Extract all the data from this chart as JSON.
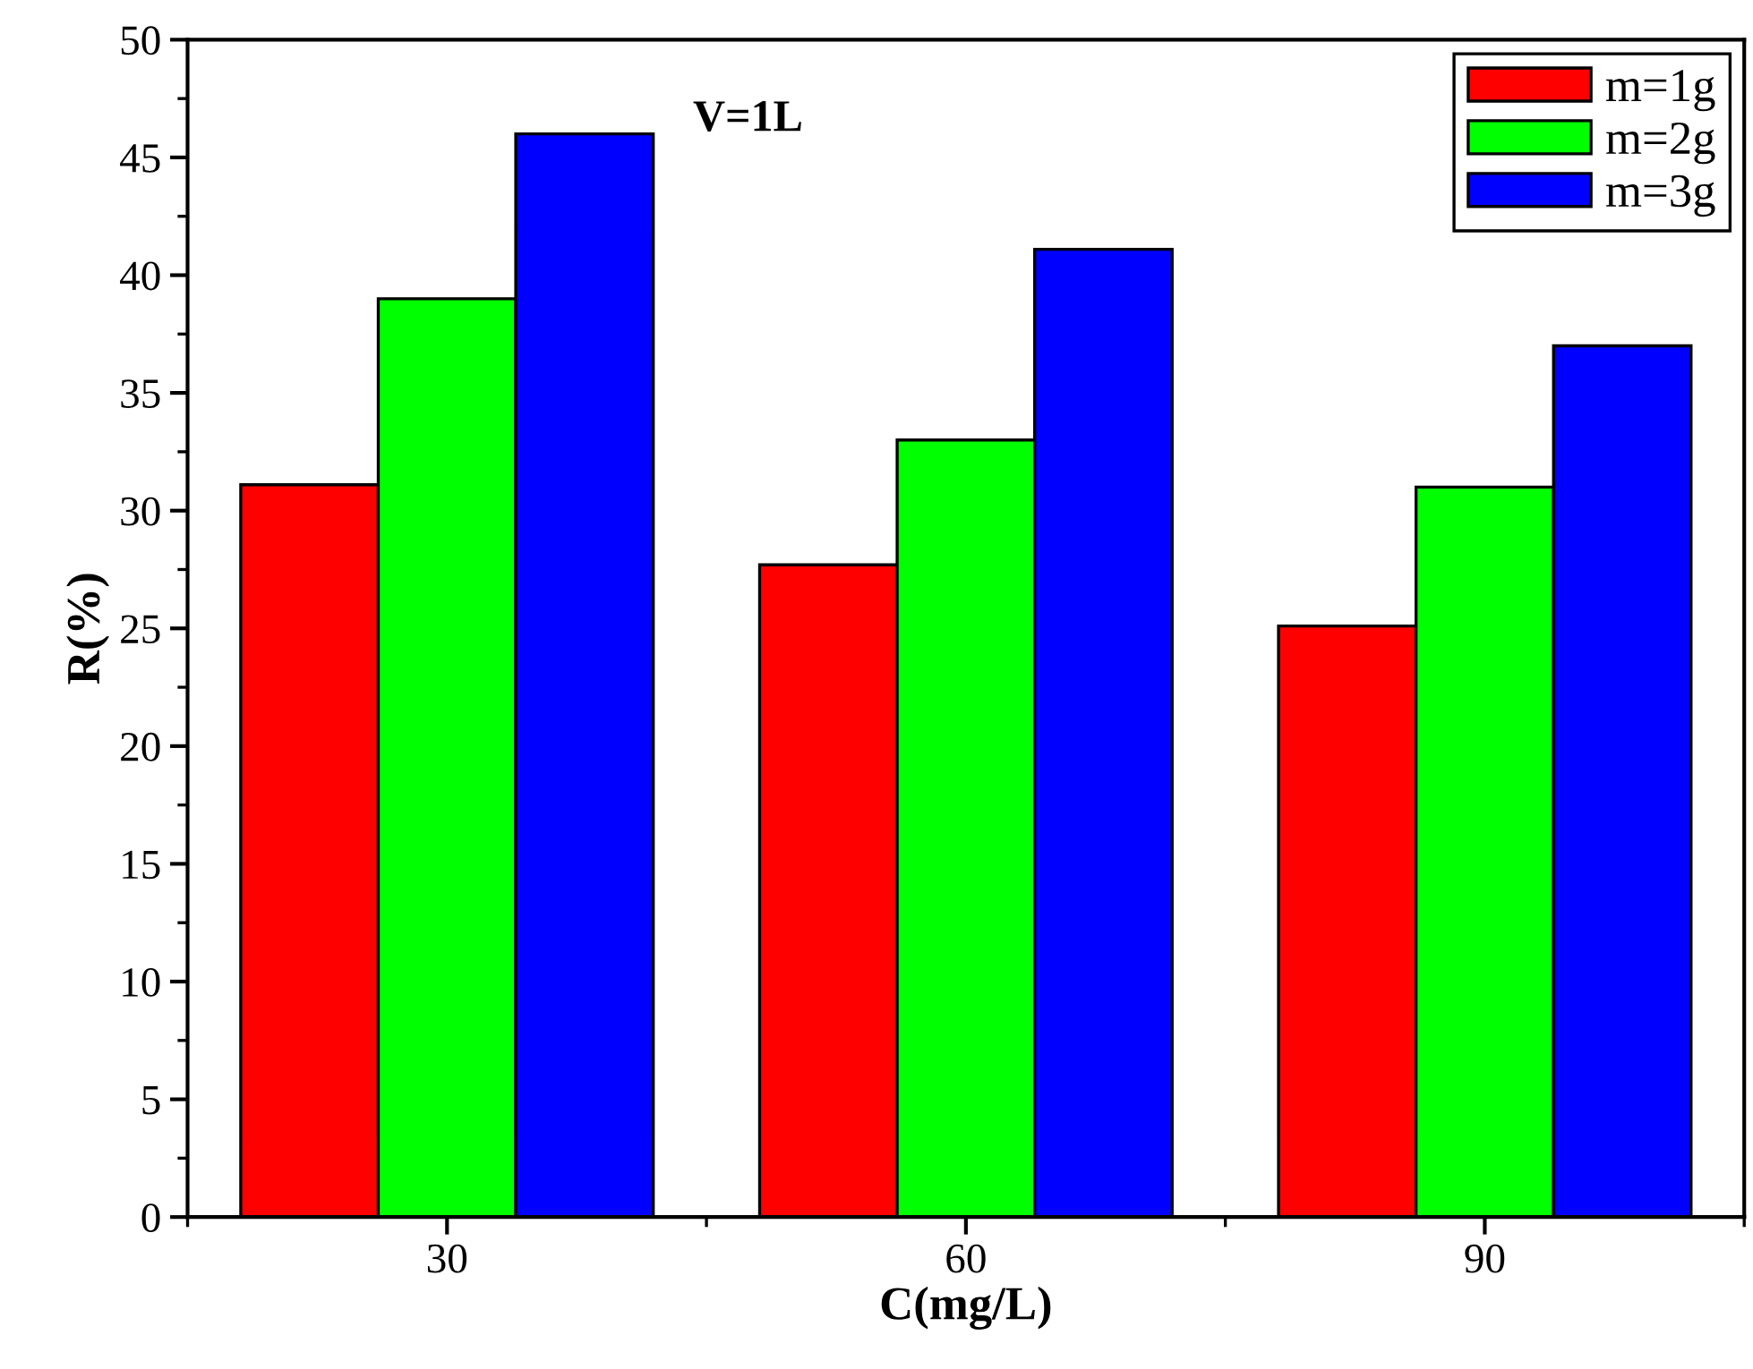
{
  "chart_data": {
    "type": "bar",
    "title": "V=1L",
    "xlabel": "C(mg/L)",
    "ylabel": "R(%)",
    "categories": [
      "30",
      "60",
      "90"
    ],
    "series": [
      {
        "name": "m=1g",
        "color": "#ff0000",
        "values": [
          31.1,
          27.7,
          25.1
        ]
      },
      {
        "name": "m=2g",
        "color": "#00ff00",
        "values": [
          39.0,
          33.0,
          31.0
        ]
      },
      {
        "name": "m=3g",
        "color": "#0000ff",
        "values": [
          46.0,
          41.1,
          37.0
        ]
      }
    ],
    "ylim": [
      0,
      50
    ],
    "yticks": [
      0,
      5,
      10,
      15,
      20,
      25,
      30,
      35,
      40,
      45,
      50
    ],
    "grid": false,
    "legend": "top right"
  }
}
